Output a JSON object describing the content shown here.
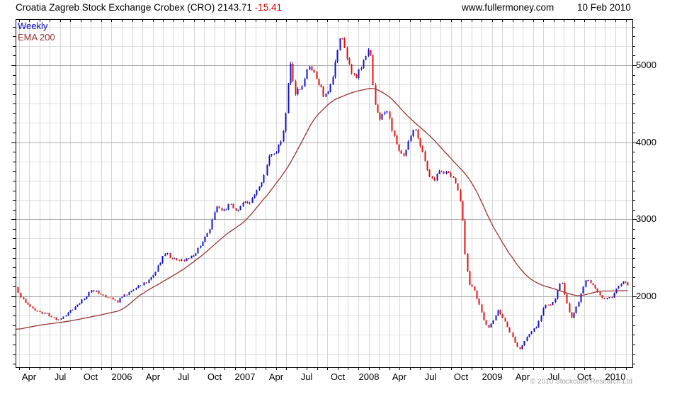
{
  "header": {
    "title": "Croatia Zagreb Stock Exchange Crobex (CRO) 2143.71",
    "change": "-15.41",
    "website": "www.fullermoney.com",
    "date": "10 Feb 2010"
  },
  "legend": {
    "series1": "Weekly",
    "series2": "EMA 200"
  },
  "footer": {
    "copyright": "© 2010 Stockcube Research Ltd"
  },
  "chart_data": {
    "type": "candlestick",
    "title": "Croatia Zagreb Stock Exchange Crobex (CRO)",
    "interval": "weekly",
    "overlay": "EMA 200",
    "last_price": 2143.71,
    "change": -15.41,
    "x_range": [
      "2005-02-20",
      "2010-02-10"
    ],
    "y_axis": {
      "ticks": [
        2000,
        3000,
        4000,
        5000
      ],
      "minor_grid_step": 250,
      "minor_tick_step": 125,
      "range_approx": [
        1080,
        5600
      ],
      "grid": true
    },
    "x_axis": {
      "labels": [
        {
          "label": "Apr",
          "year": 2005,
          "month": 4
        },
        {
          "label": "Jul",
          "year": 2005,
          "month": 7
        },
        {
          "label": "Oct",
          "year": 2005,
          "month": 10
        },
        {
          "label": "2006",
          "year": 2006,
          "month": 1
        },
        {
          "label": "Apr",
          "year": 2006,
          "month": 4
        },
        {
          "label": "Jul",
          "year": 2006,
          "month": 7
        },
        {
          "label": "Oct",
          "year": 2006,
          "month": 10
        },
        {
          "label": "2007",
          "year": 2007,
          "month": 1
        },
        {
          "label": "Apr",
          "year": 2007,
          "month": 4
        },
        {
          "label": "Jul",
          "year": 2007,
          "month": 7
        },
        {
          "label": "Oct",
          "year": 2007,
          "month": 10
        },
        {
          "label": "2008",
          "year": 2008,
          "month": 1
        },
        {
          "label": "Apr",
          "year": 2008,
          "month": 4
        },
        {
          "label": "Jul",
          "year": 2008,
          "month": 7
        },
        {
          "label": "Oct",
          "year": 2008,
          "month": 10
        },
        {
          "label": "2009",
          "year": 2009,
          "month": 1
        },
        {
          "label": "Apr",
          "year": 2009,
          "month": 4
        },
        {
          "label": "Jul",
          "year": 2009,
          "month": 7
        },
        {
          "label": "Oct",
          "year": 2009,
          "month": 10
        },
        {
          "label": "2010",
          "year": 2010,
          "month": 1
        }
      ]
    },
    "close_keypoints": [
      [
        "2005-02-20",
        2120
      ],
      [
        "2005-03-05",
        1995
      ],
      [
        "2005-04-01",
        1880
      ],
      [
        "2005-04-25",
        1800
      ],
      [
        "2005-05-20",
        1775
      ],
      [
        "2005-06-20",
        1695
      ],
      [
        "2005-07-15",
        1755
      ],
      [
        "2005-08-12",
        1860
      ],
      [
        "2005-09-09",
        1960
      ],
      [
        "2005-10-03",
        2090
      ],
      [
        "2005-10-21",
        2055
      ],
      [
        "2005-11-18",
        1990
      ],
      [
        "2005-12-16",
        1928
      ],
      [
        "2006-01-13",
        2030
      ],
      [
        "2006-02-10",
        2105
      ],
      [
        "2006-03-10",
        2175
      ],
      [
        "2006-04-07",
        2300
      ],
      [
        "2006-05-05",
        2575
      ],
      [
        "2006-06-02",
        2480
      ],
      [
        "2006-06-30",
        2455
      ],
      [
        "2006-07-28",
        2520
      ],
      [
        "2006-08-25",
        2700
      ],
      [
        "2006-09-15",
        2860
      ],
      [
        "2006-10-06",
        3180
      ],
      [
        "2006-10-27",
        3110
      ],
      [
        "2006-11-17",
        3210
      ],
      [
        "2006-12-01",
        3080
      ],
      [
        "2006-12-22",
        3190
      ],
      [
        "2007-01-19",
        3240
      ],
      [
        "2007-02-09",
        3390
      ],
      [
        "2007-02-23",
        3560
      ],
      [
        "2007-03-09",
        3810
      ],
      [
        "2007-03-30",
        3880
      ],
      [
        "2007-04-13",
        3990
      ],
      [
        "2007-04-27",
        4250
      ],
      [
        "2007-05-11",
        5080
      ],
      [
        "2007-05-25",
        4640
      ],
      [
        "2007-06-15",
        4700
      ],
      [
        "2007-07-06",
        5020
      ],
      [
        "2007-07-20",
        4930
      ],
      [
        "2007-08-10",
        4700
      ],
      [
        "2007-08-24",
        4580
      ],
      [
        "2007-09-14",
        4820
      ],
      [
        "2007-10-05",
        5330
      ],
      [
        "2007-10-12",
        5390
      ],
      [
        "2007-10-26",
        5140
      ],
      [
        "2007-11-09",
        4890
      ],
      [
        "2007-11-23",
        4820
      ],
      [
        "2007-12-14",
        5040
      ],
      [
        "2008-01-04",
        5230
      ],
      [
        "2008-01-18",
        4520
      ],
      [
        "2008-02-01",
        4310
      ],
      [
        "2008-02-22",
        4450
      ],
      [
        "2008-03-14",
        4100
      ],
      [
        "2008-03-28",
        3890
      ],
      [
        "2008-04-11",
        3800
      ],
      [
        "2008-05-02",
        4080
      ],
      [
        "2008-05-16",
        4160
      ],
      [
        "2008-06-06",
        3920
      ],
      [
        "2008-06-27",
        3580
      ],
      [
        "2008-07-11",
        3490
      ],
      [
        "2008-07-25",
        3600
      ],
      [
        "2008-08-15",
        3620
      ],
      [
        "2008-09-05",
        3540
      ],
      [
        "2008-09-26",
        3320
      ],
      [
        "2008-10-03",
        3100
      ],
      [
        "2008-10-10",
        2620
      ],
      [
        "2008-10-17",
        2380
      ],
      [
        "2008-10-24",
        2180
      ],
      [
        "2008-11-07",
        2080
      ],
      [
        "2008-11-21",
        1920
      ],
      [
        "2008-12-05",
        1700
      ],
      [
        "2008-12-19",
        1580
      ],
      [
        "2009-01-09",
        1730
      ],
      [
        "2009-01-16",
        1830
      ],
      [
        "2009-02-06",
        1690
      ],
      [
        "2009-02-20",
        1560
      ],
      [
        "2009-03-06",
        1420
      ],
      [
        "2009-03-20",
        1290
      ],
      [
        "2009-04-10",
        1460
      ],
      [
        "2009-04-24",
        1545
      ],
      [
        "2009-05-08",
        1590
      ],
      [
        "2009-05-22",
        1740
      ],
      [
        "2009-06-05",
        1900
      ],
      [
        "2009-06-19",
        1870
      ],
      [
        "2009-07-03",
        1960
      ],
      [
        "2009-07-17",
        2140
      ],
      [
        "2009-07-24",
        2200
      ],
      [
        "2009-08-07",
        1930
      ],
      [
        "2009-08-21",
        1700
      ],
      [
        "2009-09-04",
        1840
      ],
      [
        "2009-09-18",
        1990
      ],
      [
        "2009-10-02",
        2220
      ],
      [
        "2009-10-16",
        2190
      ],
      [
        "2009-10-30",
        2110
      ],
      [
        "2009-11-13",
        2020
      ],
      [
        "2009-11-27",
        1950
      ],
      [
        "2009-12-11",
        1980
      ],
      [
        "2009-12-25",
        2010
      ],
      [
        "2010-01-08",
        2130
      ],
      [
        "2010-01-22",
        2190
      ],
      [
        "2010-02-05",
        2160
      ],
      [
        "2010-02-10",
        2143.71
      ]
    ],
    "ema_keypoints": [
      [
        "2005-02-20",
        1565
      ],
      [
        "2005-05-01",
        1625
      ],
      [
        "2005-08-01",
        1680
      ],
      [
        "2005-11-01",
        1760
      ],
      [
        "2006-01-01",
        1820
      ],
      [
        "2006-03-01",
        2040
      ],
      [
        "2006-05-01",
        2190
      ],
      [
        "2006-07-01",
        2350
      ],
      [
        "2006-09-01",
        2550
      ],
      [
        "2006-11-01",
        2790
      ],
      [
        "2007-01-01",
        2975
      ],
      [
        "2007-03-01",
        3290
      ],
      [
        "2007-05-01",
        3640
      ],
      [
        "2007-06-15",
        3990
      ],
      [
        "2007-07-20",
        4300
      ],
      [
        "2007-09-15",
        4540
      ],
      [
        "2007-11-15",
        4650
      ],
      [
        "2008-01-15",
        4710
      ],
      [
        "2008-03-01",
        4600
      ],
      [
        "2008-05-01",
        4310
      ],
      [
        "2008-07-01",
        4080
      ],
      [
        "2008-09-01",
        3790
      ],
      [
        "2008-10-20",
        3560
      ],
      [
        "2008-11-20",
        3340
      ],
      [
        "2008-12-25",
        2980
      ],
      [
        "2009-02-01",
        2700
      ],
      [
        "2009-03-15",
        2400
      ],
      [
        "2009-04-20",
        2230
      ],
      [
        "2009-05-25",
        2145
      ],
      [
        "2009-07-01",
        2100
      ],
      [
        "2009-08-10",
        2040
      ],
      [
        "2009-09-15",
        2000
      ],
      [
        "2009-10-20",
        2040
      ],
      [
        "2009-11-15",
        2070
      ],
      [
        "2009-12-15",
        2068
      ],
      [
        "2010-01-15",
        2072
      ],
      [
        "2010-02-10",
        2075
      ]
    ],
    "colors": {
      "up": "#1111cc",
      "down": "#e01010",
      "ema": "#993333",
      "grid_minor": "#dedede",
      "grid_vertical": "#d6d6d6",
      "grid_major": "#ababab",
      "axis": "#000000"
    }
  }
}
